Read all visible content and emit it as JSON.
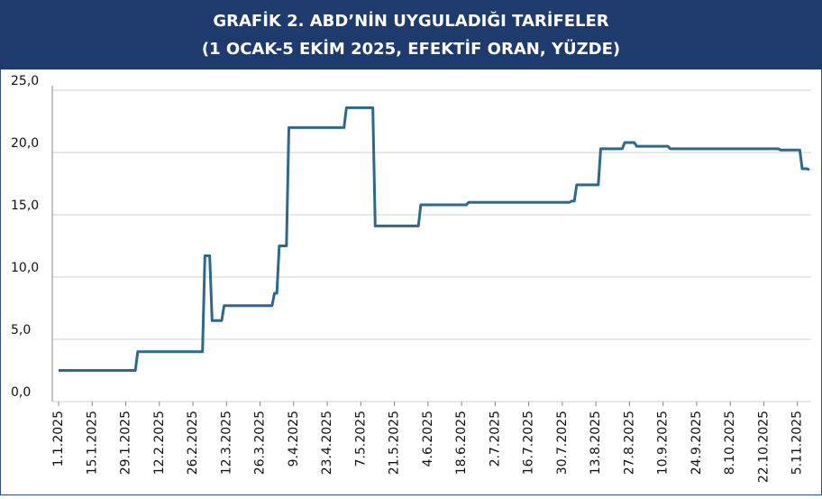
{
  "chart_data": {
    "type": "line",
    "title": [
      "GRAFİK 2. ABD’NİN UYGULADIĞI TARİFELER",
      "(1 OCAK-5 EKİM 2025, EFEKTİF ORAN, YÜZDE)"
    ],
    "x": [
      "1.1.2025",
      "2.2.2025",
      "3.2.2025",
      "2.3.2025",
      "3.3.2025",
      "5.3.2025",
      "6.3.2025",
      "10.3.2025",
      "11.3.2025",
      "31.3.2025",
      "1.4.2025",
      "2.4.2025",
      "3.4.2025",
      "6.4.2025",
      "7.4.2025",
      "30.4.2025",
      "1.5.2025",
      "12.5.2025",
      "13.5.2025",
      "31.5.2025",
      "1.6.2025",
      "20.6.2025",
      "21.6.2025",
      "2.8.2025",
      "3.8.2025",
      "4.8.2025",
      "5.8.2025",
      "14.8.2025",
      "15.8.2025",
      "24.8.2025",
      "25.8.2025",
      "29.8.2025",
      "30.8.2025",
      "12.9.2025",
      "13.9.2025",
      "28.10.2025",
      "29.10.2025",
      "6.11.2025",
      "7.11.2025",
      "9.11.2025",
      "10.11.2025"
    ],
    "series": [
      {
        "color": "#2a6a8c",
        "values": [
          2.5,
          2.5,
          4.0,
          4.0,
          11.7,
          11.7,
          6.5,
          6.5,
          7.7,
          7.7,
          8.7,
          8.7,
          12.5,
          12.5,
          22.0,
          22.0,
          23.6,
          23.6,
          14.1,
          14.1,
          15.8,
          15.8,
          16.0,
          16.0,
          16.1,
          16.1,
          17.4,
          17.4,
          20.3,
          20.3,
          20.8,
          20.8,
          20.5,
          20.5,
          20.3,
          20.3,
          20.2,
          20.2,
          18.7,
          18.7,
          18.6
        ]
      }
    ],
    "xlim": [
      "1.1.2025",
      "10.11.2025"
    ],
    "xticks": [
      "1.1.2025",
      "15.1.2025",
      "29.1.2025",
      "12.2.2025",
      "26.2.2025",
      "12.3.2025",
      "26.3.2025",
      "9.4.2025",
      "23.4.2025",
      "7.5.2025",
      "21.5.2025",
      "4.6.2025",
      "18.6.2025",
      "2.7.2025",
      "16.7.2025",
      "30.7.2025",
      "13.8.2025",
      "27.8.2025",
      "10.9.2025",
      "24.9.2025",
      "8.10.2025",
      "22.10.2025",
      "5.11.2025"
    ],
    "ylim": [
      0,
      25
    ],
    "yticks": [
      {
        "value": 0,
        "label": "0,0"
      },
      {
        "value": 5,
        "label": "5,0"
      },
      {
        "value": 10,
        "label": "10,0"
      },
      {
        "value": 15,
        "label": "15,0"
      },
      {
        "value": 20,
        "label": "20,0"
      },
      {
        "value": 25,
        "label": "25,0"
      }
    ],
    "grid": true
  }
}
